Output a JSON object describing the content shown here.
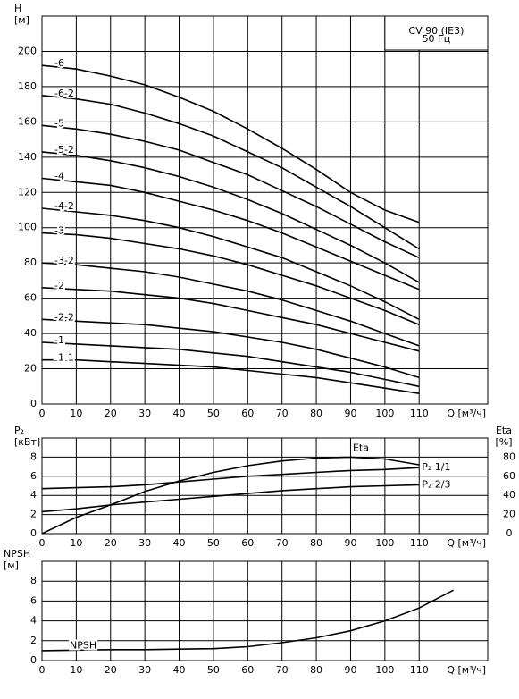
{
  "chart_data": [
    {
      "type": "line",
      "y_label": [
        "H",
        "[м]"
      ],
      "x_label": "Q [м³/ч]",
      "annotations": [
        "CV 90 (IE3)",
        "50 Гц"
      ],
      "x": [
        0,
        10,
        20,
        30,
        40,
        50,
        60,
        70,
        80,
        90,
        100,
        110
      ],
      "xlim": [
        0,
        130
      ],
      "xticks": [
        0,
        10,
        20,
        30,
        40,
        50,
        60,
        70,
        80,
        90,
        100,
        110
      ],
      "ylim": [
        0,
        220
      ],
      "yticks": [
        0,
        20,
        40,
        60,
        80,
        100,
        120,
        140,
        160,
        180,
        200
      ],
      "grid": true,
      "series": [
        {
          "name": "-6",
          "color": "#000000",
          "values": [
            192,
            190,
            186,
            181,
            174,
            166,
            156,
            145,
            133,
            120,
            110,
            103
          ]
        },
        {
          "name": "-6-2",
          "color": "#000000",
          "values": [
            175,
            173,
            170,
            165,
            159,
            152,
            143,
            134,
            123,
            112,
            100,
            88
          ]
        },
        {
          "name": "-5",
          "color": "#000000",
          "values": [
            158,
            156,
            153,
            149,
            144,
            137,
            130,
            121,
            112,
            102,
            92,
            83
          ]
        },
        {
          "name": "-5-2",
          "color": "#000000",
          "values": [
            143,
            141,
            138,
            134,
            129,
            123,
            116,
            108,
            99,
            90,
            80,
            69
          ]
        },
        {
          "name": "-4",
          "color": "#000000",
          "values": [
            128,
            126,
            124,
            120,
            115,
            110,
            104,
            97,
            89,
            81,
            73,
            65
          ]
        },
        {
          "name": "-4-2",
          "color": "#000000",
          "values": [
            111,
            109,
            107,
            104,
            100,
            95,
            89,
            83,
            75,
            67,
            58,
            48
          ]
        },
        {
          "name": "-3",
          "color": "#000000",
          "values": [
            97,
            96,
            94,
            91,
            88,
            84,
            79,
            73,
            67,
            60,
            53,
            45
          ]
        },
        {
          "name": "-3-2",
          "color": "#000000",
          "values": [
            80,
            79,
            77,
            75,
            72,
            68,
            64,
            59,
            53,
            47,
            40,
            33
          ]
        },
        {
          "name": "-2",
          "color": "#000000",
          "values": [
            66,
            65,
            64,
            62,
            60,
            57,
            53,
            49,
            45,
            40,
            35,
            30
          ]
        },
        {
          "name": "-2-2",
          "color": "#000000",
          "values": [
            48,
            47,
            46,
            45,
            43,
            41,
            38,
            35,
            31,
            26,
            21,
            15
          ]
        },
        {
          "name": "-1",
          "color": "#000000",
          "values": [
            35,
            34,
            33,
            32,
            31,
            29,
            27,
            24,
            21,
            18,
            14,
            10
          ]
        },
        {
          "name": "-1-1",
          "color": "#000000",
          "values": [
            25,
            25,
            24,
            23,
            22,
            21,
            19,
            17,
            15,
            12,
            9,
            6
          ]
        }
      ]
    },
    {
      "type": "line",
      "y_label": [
        "P₂",
        "[кВт]"
      ],
      "y2_label": [
        "Eta",
        "[%]"
      ],
      "x_label": "Q [м³/ч]",
      "x": [
        0,
        10,
        20,
        30,
        40,
        50,
        60,
        70,
        80,
        90,
        100,
        110
      ],
      "xlim": [
        0,
        130
      ],
      "xticks": [
        0,
        10,
        20,
        30,
        40,
        50,
        60,
        70,
        80,
        90,
        100,
        110
      ],
      "ylim": [
        0,
        10
      ],
      "yticks": [
        0,
        2,
        4,
        6,
        8
      ],
      "y2lim": [
        0,
        100
      ],
      "y2ticks": [
        0,
        20,
        40,
        60,
        80
      ],
      "grid": true,
      "series": [
        {
          "name": "Eta",
          "color": "#000000",
          "axis": "y2",
          "values": [
            0,
            17,
            30,
            44,
            55,
            64,
            71,
            76,
            79,
            80,
            78,
            72
          ]
        },
        {
          "name": "P₂ 1/1",
          "color": "#000000",
          "values": [
            4.7,
            4.8,
            4.9,
            5.1,
            5.4,
            5.7,
            6.0,
            6.2,
            6.4,
            6.6,
            6.7,
            6.9
          ]
        },
        {
          "name": "P₂ 2/3",
          "color": "#000000",
          "values": [
            2.3,
            2.6,
            3.0,
            3.3,
            3.6,
            3.9,
            4.2,
            4.5,
            4.7,
            4.9,
            5.0,
            5.1
          ]
        }
      ]
    },
    {
      "type": "line",
      "y_label": [
        "NPSH",
        "[м]"
      ],
      "x_label": "Q [м³/ч]",
      "x": [
        0,
        10,
        20,
        30,
        40,
        50,
        60,
        70,
        80,
        90,
        100,
        110,
        120
      ],
      "xlim": [
        0,
        130
      ],
      "xticks": [
        0,
        10,
        20,
        30,
        40,
        50,
        60,
        70,
        80,
        90,
        100,
        110
      ],
      "ylim": [
        0,
        10
      ],
      "yticks": [
        0,
        2,
        4,
        6,
        8
      ],
      "grid": true,
      "series": [
        {
          "name": "NPSH",
          "color": "#000000",
          "values": [
            1.0,
            1.05,
            1.1,
            1.1,
            1.15,
            1.2,
            1.4,
            1.8,
            2.3,
            3.0,
            4.0,
            5.3,
            7.1
          ]
        }
      ]
    }
  ]
}
